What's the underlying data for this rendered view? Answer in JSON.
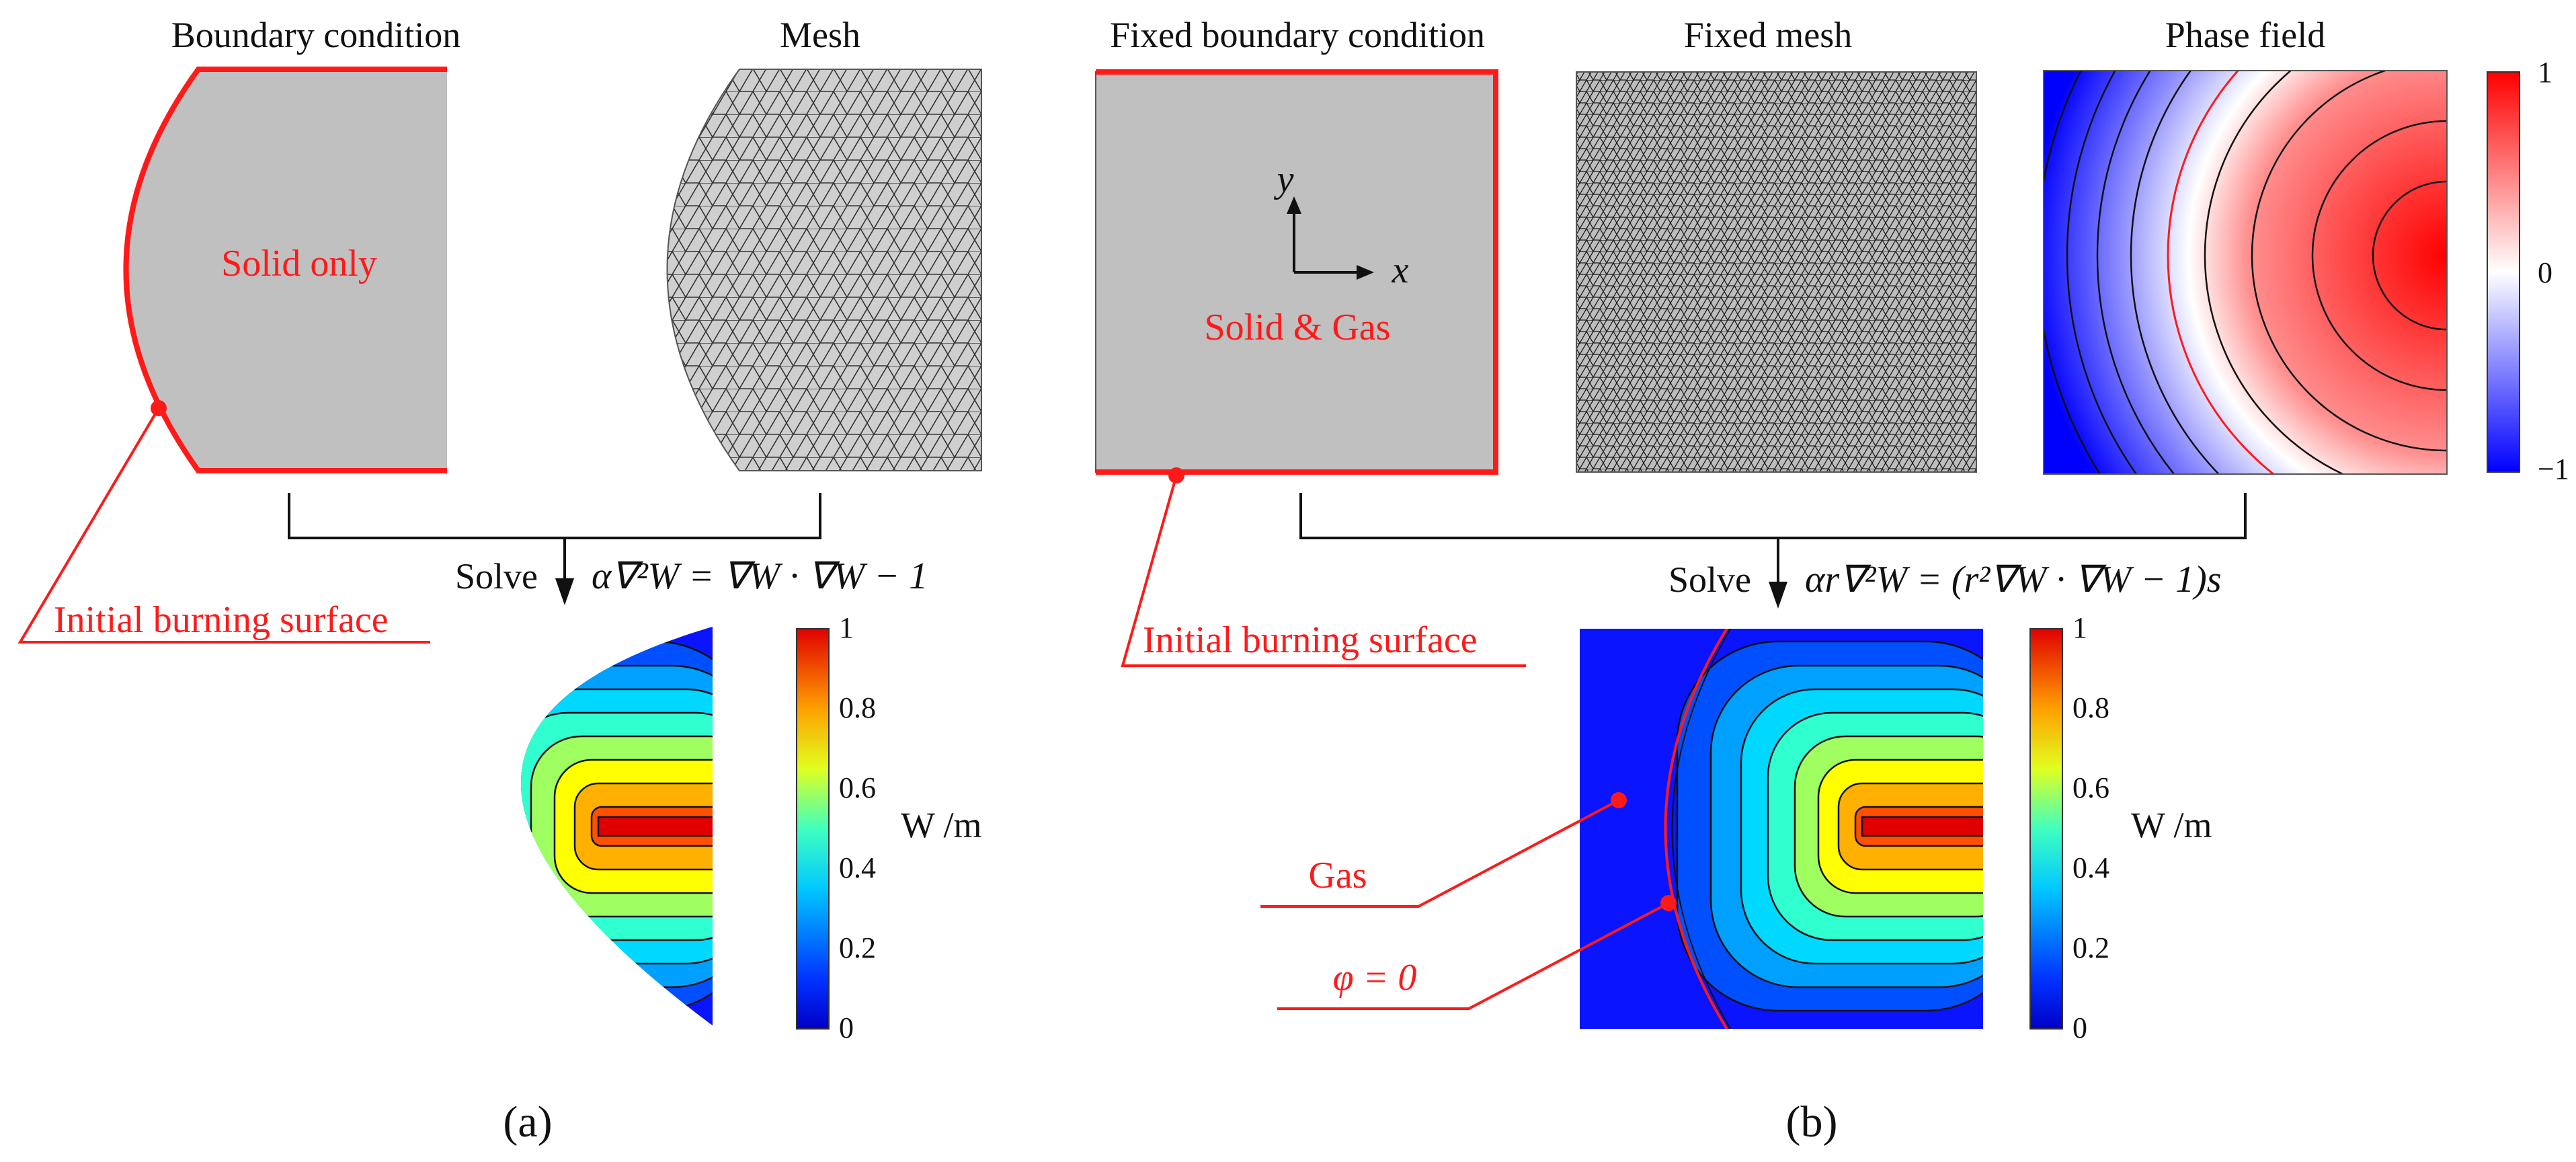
{
  "panel_a": {
    "boundary_title": "Boundary condition",
    "mesh_title": "Mesh",
    "region_label": "Solid only",
    "burning_label": "Initial burning surface",
    "solve_label": "Solve",
    "equation": "α∇²W = ∇W · ∇W − 1",
    "colorbar_ticks": [
      "1",
      "0.8",
      "0.6",
      "0.4",
      "0.2",
      "0"
    ],
    "unit_label": "W /m",
    "panel_label": "(a)"
  },
  "panel_b": {
    "boundary_title": "Fixed boundary condition",
    "mesh_title": "Fixed mesh",
    "phase_title": "Phase field",
    "region_label": "Solid & Gas",
    "axis_y": "y",
    "axis_x": "x",
    "phase_ticks": [
      "1",
      "0",
      "−1"
    ],
    "burning_label": "Initial burning surface",
    "solve_label": "Solve",
    "equation": "αr∇²W = (r²∇W · ∇W − 1)s",
    "gas_label": "Gas",
    "phi_label": "φ = 0",
    "colorbar_ticks": [
      "1",
      "0.8",
      "0.6",
      "0.4",
      "0.2",
      "0"
    ],
    "unit_label": "W /m",
    "panel_label": "(b)"
  },
  "colors": {
    "boundary_red": "#ff1a1a",
    "solid_gray": "#c0c0c0",
    "gas_blue": "#0a14ff"
  }
}
